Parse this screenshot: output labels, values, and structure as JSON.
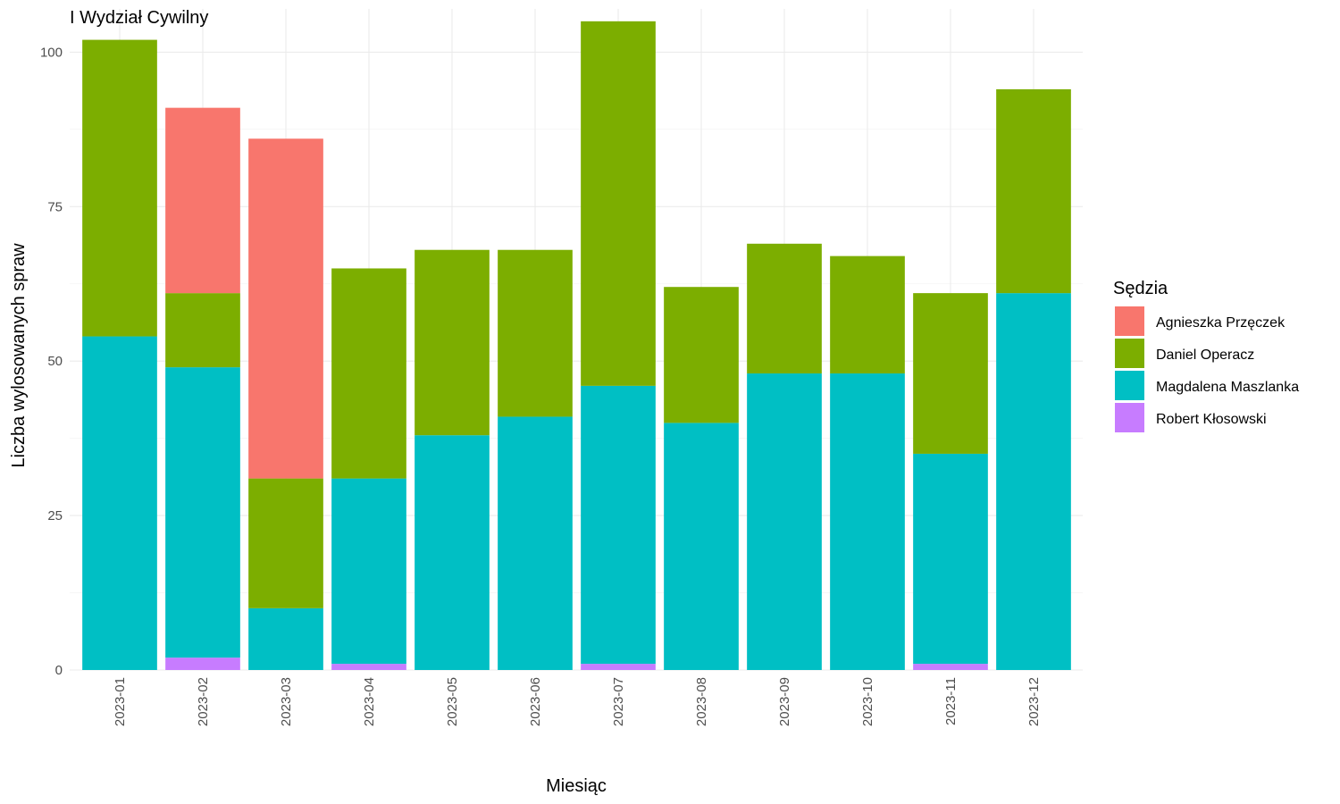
{
  "chart_data": {
    "type": "bar",
    "stacked": true,
    "title": "I Wydział Cywilny",
    "xlabel": "Miesiąc",
    "ylabel": "Liczba wylosowanych spraw",
    "ylim": [
      0,
      107
    ],
    "yticks": [
      0,
      25,
      50,
      75,
      100
    ],
    "grid": true,
    "legend_position": "right",
    "legend_title": "Sędzia",
    "categories": [
      "2023-01",
      "2023-02",
      "2023-03",
      "2023-04",
      "2023-05",
      "2023-06",
      "2023-07",
      "2023-08",
      "2023-09",
      "2023-10",
      "2023-11",
      "2023-12"
    ],
    "series": [
      {
        "name": "Agnieszka Przęczek",
        "color": "#F8766D",
        "values": [
          0,
          30,
          55,
          0,
          0,
          0,
          0,
          0,
          0,
          0,
          0,
          0
        ]
      },
      {
        "name": "Daniel Operacz",
        "color": "#7CAE00",
        "values": [
          48,
          12,
          21,
          34,
          30,
          27,
          59,
          22,
          21,
          19,
          26,
          33
        ]
      },
      {
        "name": "Magdalena Maszlanka",
        "color": "#00BFC4",
        "values": [
          54,
          47,
          10,
          30,
          38,
          41,
          45,
          40,
          48,
          48,
          34,
          61
        ]
      },
      {
        "name": "Robert Kłosowski",
        "color": "#C77CFF",
        "values": [
          0,
          2,
          0,
          1,
          0,
          0,
          1,
          0,
          0,
          0,
          1,
          0
        ]
      }
    ]
  }
}
